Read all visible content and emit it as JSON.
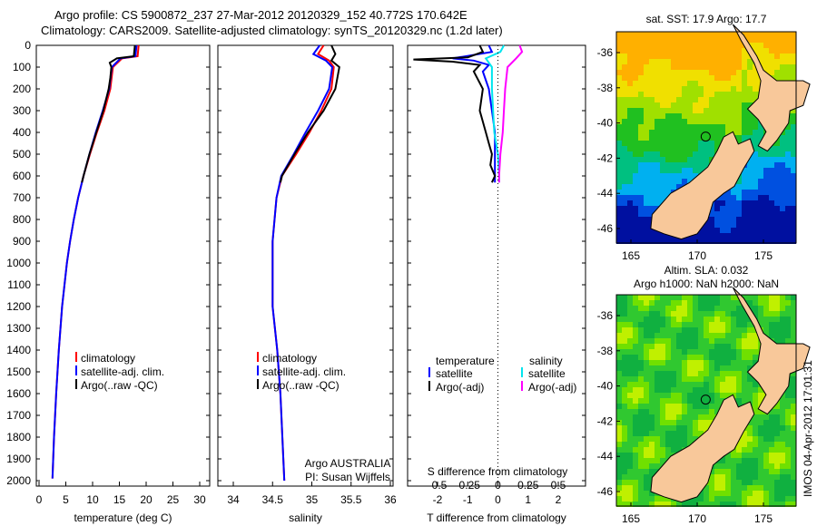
{
  "title": {
    "line1": "Argo profile: CS 5900872_237 27-Mar-2012 20120329_152 40.772S 170.642E",
    "line2": "Climatology: CARS2009. Satellite-adjusted climatology: synTS_20120329.nc (1.2d later)"
  },
  "colors": {
    "climatology": "#ff0000",
    "satellite": "#0000ff",
    "argo": "#000000",
    "sat_s": "#00e5ee",
    "argo_s": "#ff00ff",
    "land": "#f8c89a"
  },
  "chart_data": [
    {
      "type": "line",
      "id": "temp",
      "xlabel": "temperature (deg C)",
      "xlim": [
        -1,
        31
      ],
      "xticks": [
        0,
        5,
        10,
        15,
        20,
        25,
        30
      ],
      "ylim": [
        0,
        2050
      ],
      "yticks": [
        0,
        100,
        200,
        300,
        400,
        500,
        600,
        700,
        800,
        900,
        1000,
        1100,
        1200,
        1300,
        1400,
        1500,
        1600,
        1700,
        1800,
        1900,
        2000
      ],
      "legend": [
        "climatology",
        "satellite-adj. clim.",
        "Argo(..raw -QC)"
      ],
      "series": [
        {
          "name": "climatology",
          "color": "#ff0000",
          "depth": [
            0,
            50,
            60,
            100,
            200,
            300,
            400,
            500,
            600,
            700,
            800,
            900,
            1000,
            1200,
            1400,
            1600,
            1800,
            1990
          ],
          "values": [
            18.6,
            18.4,
            15.5,
            13.8,
            13.3,
            12.2,
            10.8,
            9.5,
            8.3,
            7.3,
            6.5,
            5.8,
            5.2,
            4.3,
            3.7,
            3.2,
            2.8,
            2.5
          ]
        },
        {
          "name": "satellite-adj. clim.",
          "color": "#0000ff",
          "depth": [
            0,
            50,
            60,
            100,
            200,
            300,
            400,
            500,
            600,
            700,
            800,
            900,
            1000,
            1200,
            1400,
            1600,
            1800,
            1990
          ],
          "values": [
            18.2,
            18.0,
            15.2,
            13.6,
            13.1,
            11.9,
            10.6,
            9.4,
            8.3,
            7.3,
            6.5,
            5.8,
            5.2,
            4.3,
            3.7,
            3.2,
            2.8,
            2.5
          ]
        },
        {
          "name": "Argo(..raw -QC)",
          "color": "#000000",
          "depth": [
            0,
            50,
            60,
            80,
            100,
            150,
            200,
            300,
            400,
            500,
            600,
            630
          ],
          "values": [
            17.9,
            17.7,
            14.5,
            13.2,
            13.5,
            13.3,
            13.0,
            12.0,
            10.7,
            9.4,
            8.3,
            8.0
          ]
        }
      ]
    },
    {
      "type": "line",
      "id": "sal",
      "xlabel": "salinity",
      "xlim": [
        33.9,
        36.1
      ],
      "xticks": [
        34,
        34.5,
        35,
        35.5,
        36
      ],
      "legend": [
        "climatology",
        "satellite-adj. clim.",
        "Argo(..raw -QC)"
      ],
      "annotation": [
        "Argo AUSTRALIA",
        "PI: Susan Wijffels"
      ],
      "series": [
        {
          "name": "climatology",
          "color": "#ff0000",
          "depth": [
            0,
            40,
            70,
            100,
            200,
            300,
            400,
            500,
            600,
            700,
            900,
            1200,
            1400,
            1600,
            2000
          ],
          "values": [
            35.15,
            35.08,
            35.22,
            35.28,
            35.25,
            35.12,
            34.97,
            34.8,
            34.62,
            34.55,
            34.5,
            34.5,
            34.56,
            34.6,
            34.65
          ]
        },
        {
          "name": "satellite-adj. clim.",
          "color": "#0000ff",
          "depth": [
            0,
            40,
            70,
            100,
            200,
            300,
            400,
            500,
            600,
            700,
            900,
            1200,
            1400,
            1600,
            2000
          ],
          "values": [
            35.1,
            35.02,
            35.18,
            35.26,
            35.22,
            35.08,
            34.92,
            34.77,
            34.61,
            34.55,
            34.5,
            34.5,
            34.56,
            34.6,
            34.65
          ]
        },
        {
          "name": "Argo(..raw -QC)",
          "color": "#000000",
          "depth": [
            0,
            40,
            70,
            100,
            200,
            300,
            400,
            500,
            600,
            630
          ],
          "values": [
            35.25,
            35.3,
            35.25,
            35.35,
            35.3,
            35.15,
            34.95,
            34.78,
            34.62,
            34.6
          ]
        }
      ]
    },
    {
      "type": "line",
      "id": "diff",
      "xlabel": "T difference from climatology",
      "xlabel2": "S difference from climatology",
      "xlim": [
        -3,
        3
      ],
      "xticks": [
        -2,
        -1,
        0,
        1,
        2
      ],
      "xticks2": [
        -0.5,
        -0.25,
        0,
        0.25,
        0.5
      ],
      "xtick2_labels": [
        "-0.5",
        "-0.25",
        "0",
        "0.25",
        "0.5"
      ],
      "legend": {
        "temperature": "temperature",
        "salinity": "salinity",
        "items": [
          "satellite",
          "Argo(-adj)",
          "satellite",
          "Argo(-adj)"
        ]
      },
      "series": [
        {
          "name": "T satellite",
          "color": "#0000ff",
          "depth": [
            0,
            30,
            60,
            70,
            90,
            120,
            200,
            300,
            400,
            500,
            600,
            630
          ],
          "values": [
            -0.3,
            -0.2,
            -1.5,
            -0.8,
            -0.3,
            -0.5,
            -0.3,
            -0.2,
            -0.1,
            -0.1,
            -0.1,
            -0.1
          ]
        },
        {
          "name": "T Argo(-adj)",
          "color": "#000000",
          "depth": [
            0,
            30,
            55,
            65,
            75,
            90,
            120,
            200,
            300,
            400,
            450,
            500,
            550,
            600,
            630
          ],
          "values": [
            -0.6,
            -0.5,
            -1.0,
            -2.8,
            -1.5,
            -0.6,
            -0.8,
            -0.5,
            -0.6,
            -0.4,
            -0.3,
            -0.2,
            -0.25,
            -0.1,
            -0.2
          ]
        },
        {
          "name": "S satellite",
          "color": "#00e5ee",
          "depth": [
            0,
            30,
            60,
            100,
            200,
            300,
            400,
            500,
            600,
            630
          ],
          "values": [
            0.05,
            0.02,
            -0.1,
            -0.05,
            -0.05,
            -0.04,
            -0.03,
            0,
            0.01,
            0.01
          ]
        },
        {
          "name": "S Argo(-adj)",
          "color": "#ff00ff",
          "depth": [
            0,
            30,
            60,
            100,
            200,
            300,
            400,
            500,
            600,
            630
          ],
          "values": [
            0.18,
            0.2,
            0.15,
            0.08,
            0.06,
            0.05,
            0.04,
            0.02,
            0.01,
            0.01
          ]
        }
      ]
    }
  ],
  "maps": [
    {
      "title": "sat. SST: 17.9 Argo: 17.7",
      "kind": "sst"
    },
    {
      "title": "Altim. SLA: 0.032",
      "title2": "Argo h1000: NaN h2000: NaN",
      "kind": "sla"
    }
  ],
  "map_axes": {
    "xticks": [
      "165",
      "170",
      "175"
    ],
    "yticks": [
      "-36",
      "-38",
      "-40",
      "-42",
      "-44",
      "-46"
    ]
  },
  "yaxis_labels": [
    "0",
    "100",
    "200",
    "300",
    "400",
    "500",
    "600",
    "700",
    "800",
    "900",
    "1000",
    "1100",
    "1200",
    "1300",
    "1400",
    "1500",
    "1600",
    "1700",
    "1800",
    "1900",
    "2000"
  ],
  "stamp": "IMOS 04-Apr-2012 17:01:31"
}
